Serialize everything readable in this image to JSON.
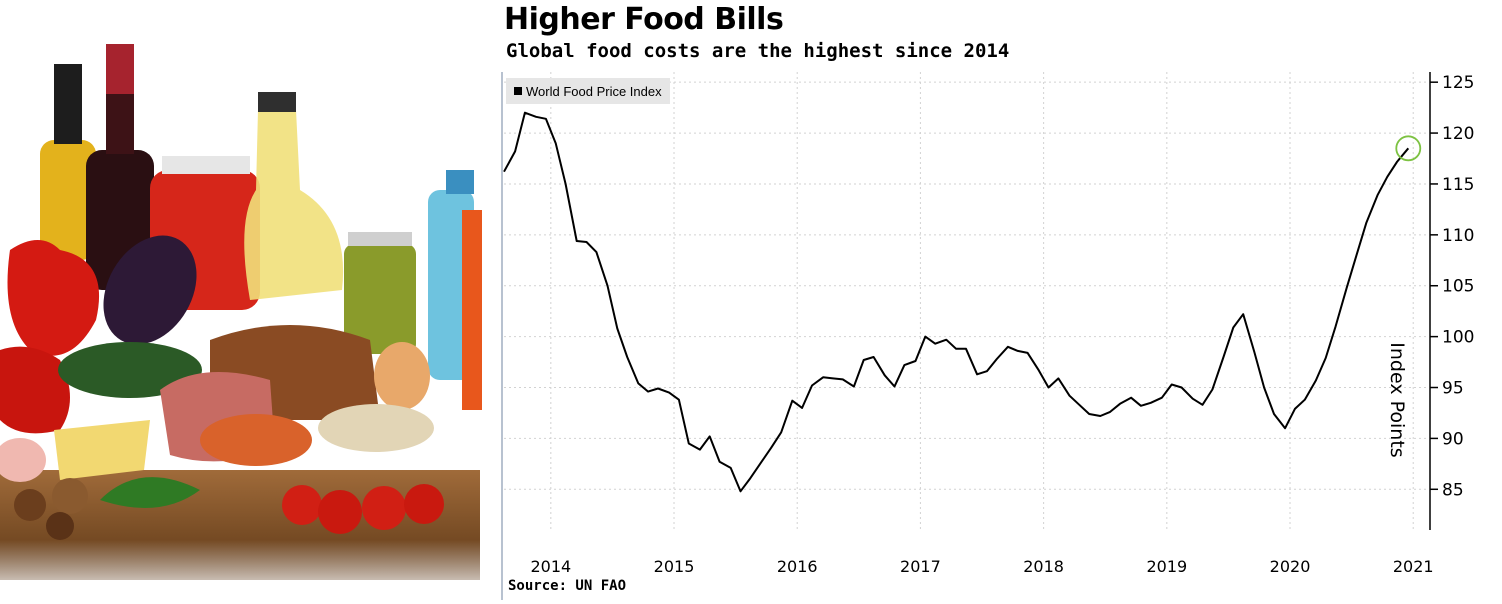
{
  "chart_data": {
    "type": "line",
    "title": "Higher Food Bills",
    "subtitle": "Global food costs are the highest since 2014",
    "ylabel": "Index Points",
    "source": "Source: UN FAO",
    "ylim": [
      81,
      126
    ],
    "y_ticks": [
      85,
      90,
      95,
      100,
      105,
      110,
      115,
      120,
      125
    ],
    "x_ticks": [
      {
        "label": "2014",
        "x": 2014.0
      },
      {
        "label": "2015",
        "x": 2015.0
      },
      {
        "label": "2016",
        "x": 2016.0
      },
      {
        "label": "2017",
        "x": 2017.0
      },
      {
        "label": "2018",
        "x": 2018.0
      },
      {
        "label": "2019",
        "x": 2019.0
      },
      {
        "label": "2020",
        "x": 2020.0
      },
      {
        "label": "2021",
        "x": 2021.0
      }
    ],
    "xlim": [
      2013.62,
      2021.12
    ],
    "grid": true,
    "legend_position": "top-left",
    "highlight": {
      "x": 2020.96,
      "y": 118.5,
      "color": "#7dc242"
    },
    "series": [
      {
        "name": "World Food Price Index",
        "color": "#000000",
        "x": [
          2013.62,
          2013.71,
          2013.79,
          2013.88,
          2013.96,
          2014.04,
          2014.12,
          2014.21,
          2014.29,
          2014.37,
          2014.46,
          2014.54,
          2014.62,
          2014.71,
          2014.79,
          2014.87,
          2014.96,
          2015.04,
          2015.12,
          2015.21,
          2015.29,
          2015.37,
          2015.46,
          2015.54,
          2015.62,
          2015.71,
          2015.79,
          2015.87,
          2015.96,
          2016.04,
          2016.12,
          2016.21,
          2016.29,
          2016.37,
          2016.46,
          2016.54,
          2016.62,
          2016.71,
          2016.79,
          2016.87,
          2016.96,
          2017.04,
          2017.12,
          2017.21,
          2017.29,
          2017.37,
          2017.46,
          2017.54,
          2017.62,
          2017.71,
          2017.79,
          2017.87,
          2017.96,
          2018.04,
          2018.12,
          2018.21,
          2018.29,
          2018.37,
          2018.46,
          2018.54,
          2018.62,
          2018.71,
          2018.79,
          2018.87,
          2018.96,
          2019.04,
          2019.12,
          2019.21,
          2019.29,
          2019.37,
          2019.46,
          2019.54,
          2019.62,
          2019.71,
          2019.79,
          2019.87,
          2019.96,
          2020.04,
          2020.12,
          2020.21,
          2020.29,
          2020.37,
          2020.46,
          2020.54,
          2020.62,
          2020.71,
          2020.79,
          2020.87,
          2020.96
        ],
        "y": [
          116.2,
          118.2,
          122.0,
          121.6,
          121.4,
          119.0,
          115.0,
          109.4,
          109.3,
          108.3,
          105.0,
          100.8,
          98.0,
          95.4,
          94.6,
          94.9,
          94.5,
          93.8,
          89.5,
          88.9,
          90.2,
          87.7,
          87.1,
          84.8,
          86.1,
          87.7,
          89.1,
          90.6,
          93.7,
          93.0,
          95.2,
          96.0,
          95.9,
          95.8,
          95.1,
          97.7,
          98.0,
          96.2,
          95.1,
          97.2,
          97.6,
          100.0,
          99.3,
          99.7,
          98.8,
          98.8,
          96.3,
          96.6,
          97.8,
          99.0,
          98.6,
          98.4,
          96.7,
          95.0,
          95.9,
          94.2,
          93.3,
          92.4,
          92.2,
          92.6,
          93.4,
          94.0,
          93.2,
          93.5,
          94.0,
          95.3,
          95.0,
          93.9,
          93.3,
          94.8,
          98.0,
          100.9,
          102.2,
          98.5,
          95.0,
          92.4,
          91.0,
          92.9,
          93.8,
          95.7,
          97.9,
          101.0,
          104.8,
          108.0,
          111.2,
          113.9,
          115.7,
          117.2,
          118.5
        ]
      }
    ]
  }
}
